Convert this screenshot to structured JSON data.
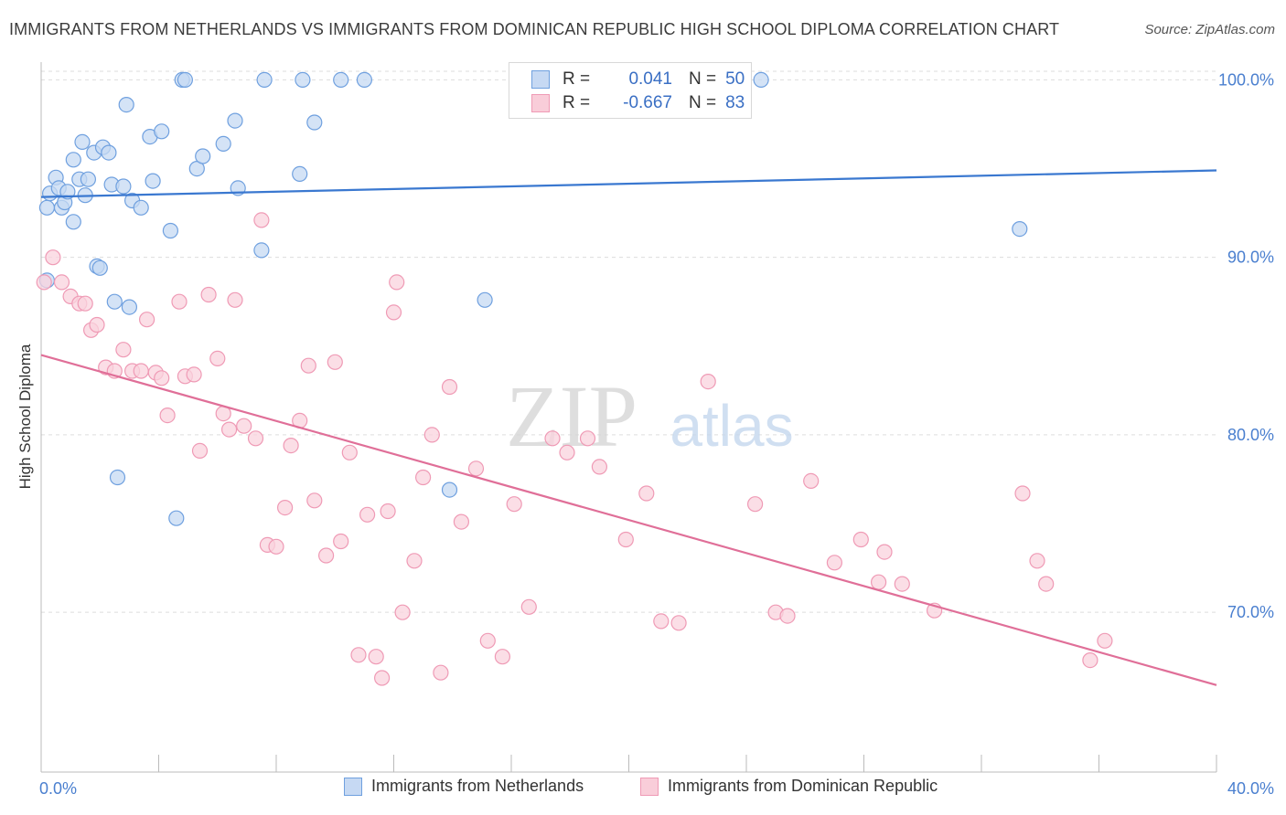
{
  "header": {
    "title": "IMMIGRANTS FROM NETHERLANDS VS IMMIGRANTS FROM DOMINICAN REPUBLIC HIGH SCHOOL DIPLOMA CORRELATION CHART",
    "source": "Source: ZipAtlas.com"
  },
  "watermark": {
    "zip": "ZIP",
    "atlas": "atlas"
  },
  "stats": [
    {
      "r_label": "R =",
      "r_value": "0.041",
      "n_label": "N =",
      "n_value": "50",
      "color": "#6fa0df",
      "fill": "#c6d9f3"
    },
    {
      "r_label": "R =",
      "r_value": "-0.667",
      "n_label": "N =",
      "n_value": "83",
      "color": "#ef9ab5",
      "fill": "#f9cdd9"
    }
  ],
  "colors": {
    "blue_stroke": "#6fa0df",
    "blue_fill": "#c6d9f3",
    "blue_line": "#3a78d0",
    "pink_stroke": "#ef9ab5",
    "pink_fill": "#f9d3de",
    "pink_line": "#e06f98",
    "tick_label": "#4a7fcf",
    "grid": "#dddddd"
  },
  "chart_data": {
    "type": "scatter",
    "ylabel": "High School Diploma",
    "x_tick_labels": [
      "0.0%",
      "40.0%"
    ],
    "y_tick_labels": [
      "100.0%",
      "90.0%",
      "80.0%",
      "70.0%"
    ],
    "y_ticks": [
      100,
      90,
      80,
      70
    ],
    "xlim": [
      0,
      40
    ],
    "ylim": [
      61,
      101
    ],
    "grid": true,
    "legend": {
      "placement": "bottom-center",
      "entries": [
        "Immigrants from Netherlands",
        "Immigrants from Dominican Republic"
      ]
    },
    "series": [
      {
        "name": "Immigrants from Netherlands",
        "r": 0.041,
        "n": 50,
        "trend": {
          "x": [
            0,
            40
          ],
          "y": [
            93.4,
            94.9
          ]
        },
        "points": [
          [
            0.2,
            88.7
          ],
          [
            0.2,
            92.8
          ],
          [
            0.3,
            93.6
          ],
          [
            0.5,
            94.5
          ],
          [
            0.6,
            93.9
          ],
          [
            0.7,
            92.8
          ],
          [
            0.8,
            93.1
          ],
          [
            0.9,
            93.7
          ],
          [
            1.1,
            92.0
          ],
          [
            1.1,
            95.5
          ],
          [
            1.3,
            94.4
          ],
          [
            1.4,
            96.5
          ],
          [
            1.5,
            93.5
          ],
          [
            1.6,
            94.4
          ],
          [
            1.8,
            95.9
          ],
          [
            1.9,
            89.5
          ],
          [
            2.0,
            89.4
          ],
          [
            2.1,
            96.2
          ],
          [
            2.3,
            95.9
          ],
          [
            2.4,
            94.1
          ],
          [
            2.5,
            87.5
          ],
          [
            2.6,
            77.6
          ],
          [
            2.8,
            94.0
          ],
          [
            2.9,
            98.6
          ],
          [
            3.0,
            87.2
          ],
          [
            3.1,
            93.2
          ],
          [
            3.4,
            92.8
          ],
          [
            3.7,
            96.8
          ],
          [
            3.8,
            94.3
          ],
          [
            4.1,
            97.1
          ],
          [
            4.4,
            91.5
          ],
          [
            4.6,
            75.3
          ],
          [
            4.8,
            100.0
          ],
          [
            4.9,
            100.0
          ],
          [
            5.3,
            95.0
          ],
          [
            5.5,
            95.7
          ],
          [
            6.2,
            96.4
          ],
          [
            6.6,
            97.7
          ],
          [
            6.7,
            93.9
          ],
          [
            7.5,
            90.4
          ],
          [
            7.6,
            100.0
          ],
          [
            8.8,
            94.7
          ],
          [
            8.9,
            100.0
          ],
          [
            9.3,
            97.6
          ],
          [
            10.2,
            100.0
          ],
          [
            11.0,
            100.0
          ],
          [
            15.1,
            87.6
          ],
          [
            13.9,
            76.9
          ],
          [
            24.5,
            100.0
          ],
          [
            33.3,
            91.6
          ]
        ]
      },
      {
        "name": "Immigrants from Dominican Republic",
        "r": -0.667,
        "n": 83,
        "trend": {
          "x": [
            0,
            40
          ],
          "y": [
            84.5,
            65.9
          ]
        },
        "points": [
          [
            0.1,
            88.6
          ],
          [
            0.4,
            90.0
          ],
          [
            0.7,
            88.6
          ],
          [
            1.0,
            87.8
          ],
          [
            1.3,
            87.4
          ],
          [
            1.5,
            87.4
          ],
          [
            1.7,
            85.9
          ],
          [
            1.9,
            86.2
          ],
          [
            2.2,
            83.8
          ],
          [
            2.5,
            83.6
          ],
          [
            2.8,
            84.8
          ],
          [
            3.1,
            83.6
          ],
          [
            3.4,
            83.6
          ],
          [
            3.6,
            86.5
          ],
          [
            3.9,
            83.5
          ],
          [
            4.1,
            83.2
          ],
          [
            4.3,
            81.1
          ],
          [
            4.7,
            87.5
          ],
          [
            4.9,
            83.3
          ],
          [
            5.2,
            83.4
          ],
          [
            5.4,
            79.1
          ],
          [
            5.7,
            87.9
          ],
          [
            6.0,
            84.3
          ],
          [
            6.2,
            81.2
          ],
          [
            6.4,
            80.3
          ],
          [
            6.6,
            87.6
          ],
          [
            6.9,
            80.5
          ],
          [
            7.3,
            79.8
          ],
          [
            7.5,
            92.1
          ],
          [
            7.7,
            73.8
          ],
          [
            8.0,
            73.7
          ],
          [
            8.3,
            75.9
          ],
          [
            8.5,
            79.4
          ],
          [
            8.8,
            80.8
          ],
          [
            9.1,
            83.9
          ],
          [
            9.3,
            76.3
          ],
          [
            9.7,
            73.2
          ],
          [
            10.0,
            84.1
          ],
          [
            10.2,
            74.0
          ],
          [
            10.5,
            79.0
          ],
          [
            10.8,
            67.6
          ],
          [
            11.1,
            75.5
          ],
          [
            11.4,
            67.5
          ],
          [
            11.6,
            66.3
          ],
          [
            11.8,
            75.7
          ],
          [
            12.0,
            86.9
          ],
          [
            12.1,
            88.6
          ],
          [
            12.3,
            70.0
          ],
          [
            12.7,
            72.9
          ],
          [
            13.0,
            77.6
          ],
          [
            13.3,
            80.0
          ],
          [
            13.6,
            66.6
          ],
          [
            13.9,
            82.7
          ],
          [
            14.3,
            75.1
          ],
          [
            14.8,
            78.1
          ],
          [
            15.2,
            68.4
          ],
          [
            15.7,
            67.5
          ],
          [
            16.1,
            76.1
          ],
          [
            16.6,
            70.3
          ],
          [
            17.4,
            79.8
          ],
          [
            17.9,
            79.0
          ],
          [
            18.6,
            79.8
          ],
          [
            19.0,
            78.2
          ],
          [
            19.9,
            74.1
          ],
          [
            20.6,
            76.7
          ],
          [
            21.1,
            69.5
          ],
          [
            21.7,
            69.4
          ],
          [
            22.7,
            83.0
          ],
          [
            24.3,
            76.1
          ],
          [
            25.0,
            70.0
          ],
          [
            25.4,
            69.8
          ],
          [
            26.2,
            77.4
          ],
          [
            27.0,
            72.8
          ],
          [
            27.9,
            74.1
          ],
          [
            28.5,
            71.7
          ],
          [
            28.7,
            73.4
          ],
          [
            29.3,
            71.6
          ],
          [
            30.4,
            70.1
          ],
          [
            33.4,
            76.7
          ],
          [
            33.9,
            72.9
          ],
          [
            34.2,
            71.6
          ],
          [
            35.7,
            67.3
          ],
          [
            36.2,
            68.4
          ]
        ]
      }
    ]
  }
}
